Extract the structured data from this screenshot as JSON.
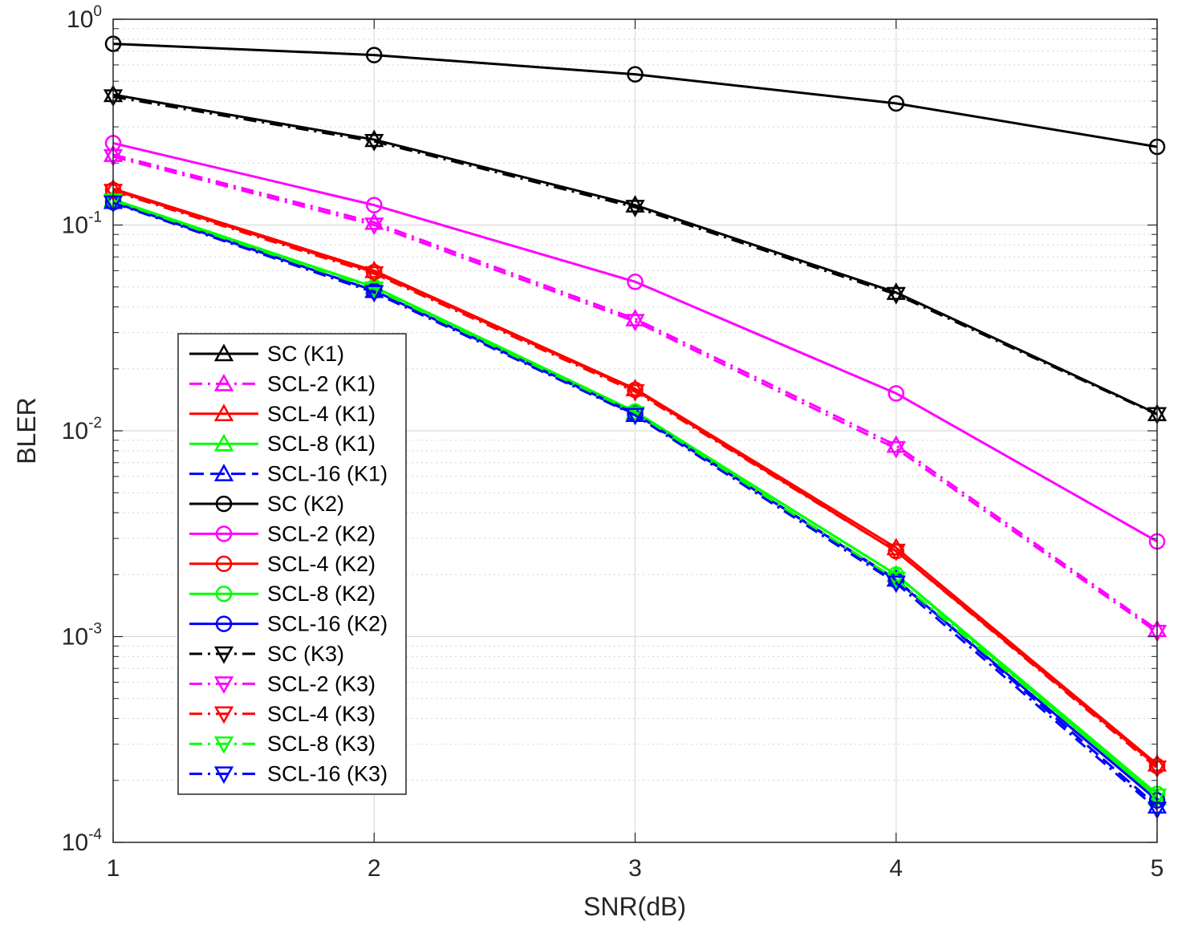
{
  "chart_data": {
    "type": "line",
    "title": "",
    "xlabel": "SNR(dB)",
    "ylabel": "BLER",
    "x": [
      1,
      2,
      3,
      4,
      5
    ],
    "xlim": [
      1,
      5
    ],
    "ylim": [
      0.0001,
      1
    ],
    "yscale": "log",
    "grid": true,
    "minor_grid": true,
    "legend_position": "lower-left",
    "x_tick_labels": [
      "1",
      "2",
      "3",
      "4",
      "5"
    ],
    "y_tick_labels": [
      {
        "base": "10",
        "exp": "0",
        "value": 1
      },
      {
        "base": "10",
        "exp": "-1",
        "value": 0.1
      },
      {
        "base": "10",
        "exp": "-2",
        "value": 0.01
      },
      {
        "base": "10",
        "exp": "-3",
        "value": 0.001
      },
      {
        "base": "10",
        "exp": "-4",
        "value": 0.0001
      }
    ],
    "series": [
      {
        "name": "SC (K1)",
        "color": "#000000",
        "dash": "solid",
        "marker": "triangle-up",
        "values": [
          0.43,
          0.26,
          0.125,
          0.047,
          0.0121
        ]
      },
      {
        "name": "SCL-2 (K1)",
        "color": "#ff00ff",
        "dash": "dashdot",
        "marker": "triangle-up",
        "values": [
          0.22,
          0.103,
          0.035,
          0.0085,
          0.00108
        ]
      },
      {
        "name": "SCL-4 (K1)",
        "color": "#ff0000",
        "dash": "solid",
        "marker": "triangle-up",
        "values": [
          0.15,
          0.06,
          0.016,
          0.0027,
          0.00024
        ]
      },
      {
        "name": "SCL-8 (K1)",
        "color": "#00ff00",
        "dash": "solid",
        "marker": "triangle-up",
        "values": [
          0.133,
          0.05,
          0.0123,
          0.002,
          0.000165
        ]
      },
      {
        "name": "SCL-16 (K1)",
        "color": "#0000ff",
        "dash": "dash",
        "marker": "triangle-up",
        "values": [
          0.13,
          0.048,
          0.012,
          0.0019,
          0.00015
        ]
      },
      {
        "name": "SC (K2)",
        "color": "#000000",
        "dash": "solid",
        "marker": "circle",
        "values": [
          0.76,
          0.67,
          0.54,
          0.39,
          0.24
        ]
      },
      {
        "name": "SCL-2 (K2)",
        "color": "#ff00ff",
        "dash": "solid",
        "marker": "circle",
        "values": [
          0.25,
          0.125,
          0.053,
          0.0152,
          0.0029
        ]
      },
      {
        "name": "SCL-4 (K2)",
        "color": "#ff0000",
        "dash": "solid",
        "marker": "circle",
        "values": [
          0.148,
          0.059,
          0.0158,
          0.0026,
          0.000235
        ]
      },
      {
        "name": "SCL-8 (K2)",
        "color": "#00ff00",
        "dash": "solid",
        "marker": "circle",
        "values": [
          0.132,
          0.05,
          0.0124,
          0.002,
          0.000172
        ]
      },
      {
        "name": "SCL-16 (K2)",
        "color": "#0000ff",
        "dash": "solid",
        "marker": "circle",
        "values": [
          0.129,
          0.048,
          0.0121,
          0.00188,
          0.00016
        ]
      },
      {
        "name": "SC (K3)",
        "color": "#000000",
        "dash": "dashdot",
        "marker": "triangle-down",
        "values": [
          0.42,
          0.255,
          0.122,
          0.046,
          0.012
        ]
      },
      {
        "name": "SCL-2 (K3)",
        "color": "#ff00ff",
        "dash": "dashdot",
        "marker": "triangle-down",
        "values": [
          0.215,
          0.1,
          0.034,
          0.0082,
          0.00105
        ]
      },
      {
        "name": "SCL-4 (K3)",
        "color": "#ff0000",
        "dash": "dashdot",
        "marker": "triangle-down",
        "values": [
          0.146,
          0.058,
          0.0155,
          0.0026,
          0.00023
        ]
      },
      {
        "name": "SCL-8 (K3)",
        "color": "#00ff00",
        "dash": "dashdot",
        "marker": "triangle-down",
        "values": [
          0.131,
          0.049,
          0.0121,
          0.0019,
          0.000168
        ]
      },
      {
        "name": "SCL-16 (K3)",
        "color": "#0000ff",
        "dash": "dashdot",
        "marker": "triangle-down",
        "values": [
          0.128,
          0.047,
          0.0119,
          0.00182,
          0.000145
        ]
      }
    ]
  }
}
